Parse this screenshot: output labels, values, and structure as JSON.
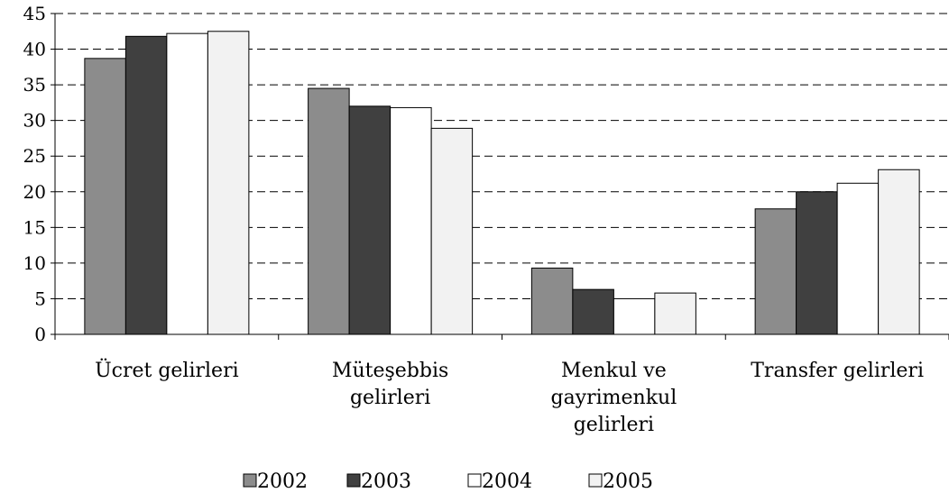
{
  "chart_data": {
    "type": "bar",
    "title": "",
    "xlabel": "",
    "ylabel": "",
    "ylim": [
      0,
      45
    ],
    "yticks": [
      0,
      5,
      10,
      15,
      20,
      25,
      30,
      35,
      40,
      45
    ],
    "grid": true,
    "legend_position": "bottom",
    "categories": [
      [
        "Ücret gelirleri"
      ],
      [
        "Müteşebbis",
        "gelirleri"
      ],
      [
        "Menkul ve",
        "gayrimenkul",
        "gelirleri"
      ],
      [
        "Transfer gelirleri"
      ]
    ],
    "series": [
      {
        "name": "2002",
        "color": "#8c8c8c",
        "values": [
          38.7,
          34.5,
          9.3,
          17.6
        ]
      },
      {
        "name": "2003",
        "color": "#404040",
        "values": [
          41.8,
          32.0,
          6.3,
          20.0
        ]
      },
      {
        "name": "2004",
        "color": "#ffffff",
        "values": [
          42.2,
          31.8,
          5.0,
          21.2
        ]
      },
      {
        "name": "2005",
        "color": "#f2f2f2",
        "values": [
          42.5,
          28.9,
          5.8,
          23.1
        ]
      }
    ]
  }
}
